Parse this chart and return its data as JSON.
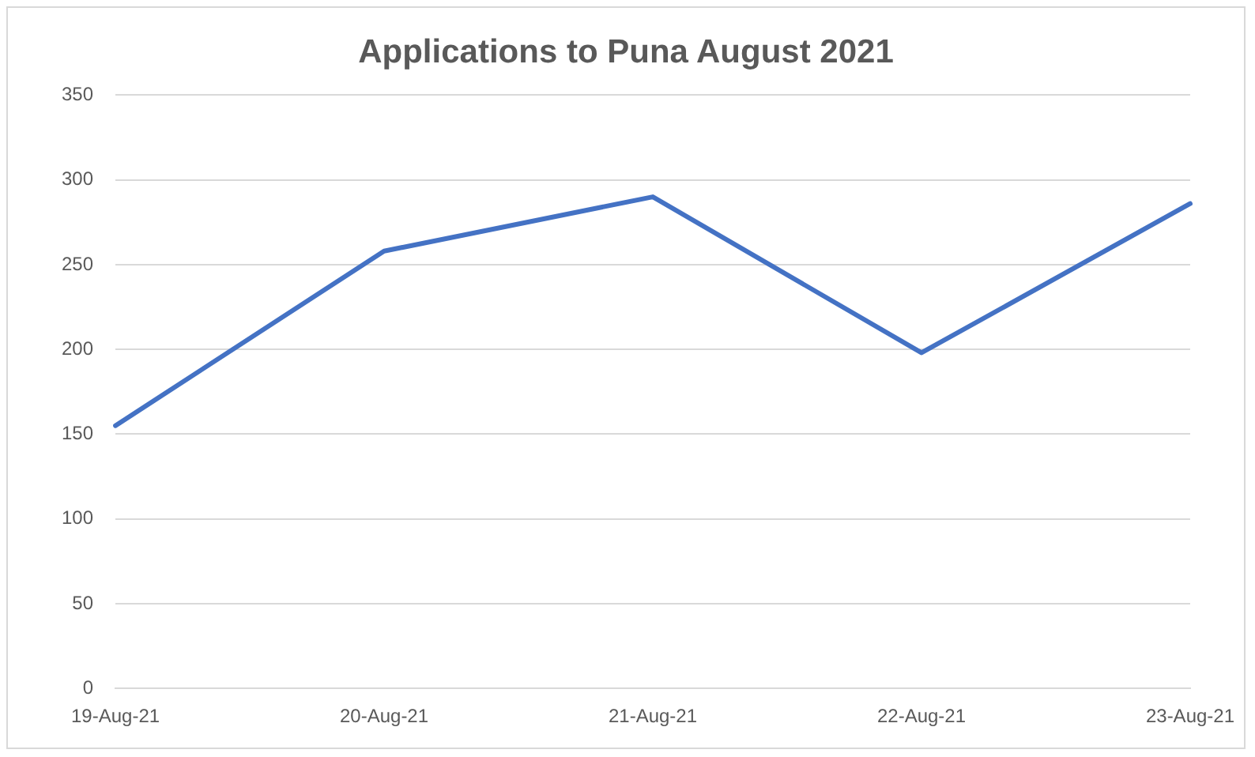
{
  "chart_data": {
    "type": "line",
    "title": "Applications to Puna August 2021",
    "categories": [
      "19-Aug-21",
      "20-Aug-21",
      "21-Aug-21",
      "22-Aug-21",
      "23-Aug-21"
    ],
    "series": [
      {
        "color": "#4472c4",
        "values": [
          155,
          258,
          290,
          198,
          286
        ]
      }
    ],
    "ylim": [
      0,
      350
    ],
    "yticks": [
      0,
      50,
      100,
      150,
      200,
      250,
      300,
      350
    ],
    "grid": "y",
    "legend": false,
    "marker": "none",
    "line_style": "solid"
  }
}
